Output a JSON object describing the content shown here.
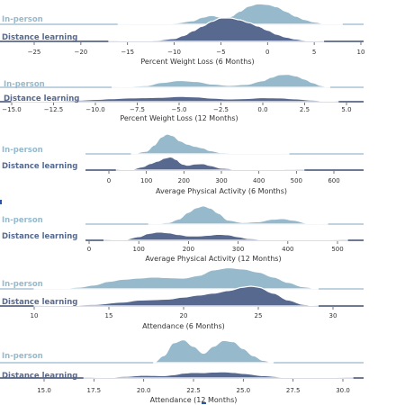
{
  "colors": {
    "inperson": "#97b9cc",
    "distance": "#57698f",
    "baseline_inperson": "#97b9cc",
    "baseline_distance": "#3e4f72",
    "outline": "#ffffff"
  },
  "chart_data": [
    {
      "type": "area",
      "title": "",
      "xlabel": "Percent Weight Loss (6 Months)",
      "ylabel": "",
      "xlim": [
        -28,
        10
      ],
      "xticks": [
        {
          "v": -25,
          "label": "−25"
        },
        {
          "v": -20,
          "label": "−20"
        },
        {
          "v": -15,
          "label": "−15"
        },
        {
          "v": -10,
          "label": "−10"
        },
        {
          "v": -5,
          "label": "−5"
        },
        {
          "v": 0,
          "label": "0"
        },
        {
          "v": 5,
          "label": "5"
        },
        {
          "v": 10,
          "label": "10"
        }
      ],
      "series": [
        {
          "name": "In-person",
          "range": [
            -16,
            8
          ],
          "x": [
            -16,
            -12,
            -10,
            -8,
            -7,
            -6,
            -5,
            -4,
            -3,
            -2,
            -1,
            0,
            1,
            2,
            3,
            4,
            5,
            6,
            8
          ],
          "density": [
            0.01,
            0.03,
            0.05,
            0.15,
            0.3,
            0.38,
            0.3,
            0.32,
            0.55,
            0.78,
            0.88,
            0.85,
            0.75,
            0.55,
            0.35,
            0.2,
            0.1,
            0.04,
            0.01
          ]
        },
        {
          "name": "Distance learning",
          "range": [
            -17,
            6
          ],
          "x": [
            -17,
            -14,
            -12,
            -10,
            -9,
            -8,
            -7,
            -6,
            -5,
            -4,
            -3,
            -2,
            -1,
            0,
            1,
            2,
            3,
            4,
            5,
            6
          ],
          "density": [
            0.01,
            0.02,
            0.05,
            0.12,
            0.25,
            0.45,
            0.65,
            0.85,
            1.0,
            1.0,
            0.92,
            0.8,
            0.65,
            0.48,
            0.3,
            0.18,
            0.1,
            0.05,
            0.02,
            0.01
          ]
        }
      ]
    },
    {
      "type": "area",
      "title": "",
      "xlabel": "Percent Weight Loss (12 Months)",
      "ylabel": "",
      "xlim": [
        -15.8,
        6.4
      ],
      "xticks": [
        {
          "v": -15,
          "label": "−15.0"
        },
        {
          "v": -12.5,
          "label": "−12.5"
        },
        {
          "v": -10,
          "label": "−10.0"
        },
        {
          "v": -7.5,
          "label": "−7.5"
        },
        {
          "v": -5,
          "label": "−5.0"
        },
        {
          "v": -2.5,
          "label": "−2.5"
        },
        {
          "v": 0,
          "label": "0.0"
        },
        {
          "v": 2.5,
          "label": "2.5"
        },
        {
          "v": 5,
          "label": "5.0"
        }
      ],
      "series": [
        {
          "name": "In-person",
          "range": [
            -9,
            4
          ],
          "x": [
            -9,
            -7,
            -6,
            -5,
            -4,
            -3,
            -2,
            -1,
            0,
            0.5,
            1,
            1.5,
            2,
            2.5,
            3,
            3.5,
            4
          ],
          "density": [
            0.01,
            0.1,
            0.3,
            0.42,
            0.36,
            0.2,
            0.12,
            0.18,
            0.4,
            0.62,
            0.78,
            0.8,
            0.7,
            0.5,
            0.28,
            0.1,
            0.01
          ]
        },
        {
          "name": "Distance learning",
          "range": [
            -15,
            4.5
          ],
          "x": [
            -15,
            -13,
            -11,
            -10,
            -9,
            -8,
            -7,
            -6,
            -5,
            -4,
            -3,
            -2,
            -1,
            0,
            1,
            2,
            3,
            4,
            4.5
          ],
          "density": [
            0.02,
            0.06,
            0.12,
            0.18,
            0.24,
            0.3,
            0.32,
            0.35,
            0.42,
            0.38,
            0.28,
            0.22,
            0.25,
            0.32,
            0.3,
            0.22,
            0.12,
            0.04,
            0.01
          ]
        }
      ]
    },
    {
      "type": "area",
      "title": "",
      "xlabel": "Average Physical Activity (6 Months)",
      "ylabel": "",
      "xlim": [
        -60,
        690
      ],
      "xticks": [
        {
          "v": 0,
          "label": "0"
        },
        {
          "v": 100,
          "label": "100"
        },
        {
          "v": 200,
          "label": "200"
        },
        {
          "v": 300,
          "label": "300"
        },
        {
          "v": 400,
          "label": "400"
        },
        {
          "v": 500,
          "label": "500"
        },
        {
          "v": 600,
          "label": "600"
        }
      ],
      "series": [
        {
          "name": "In-person",
          "range": [
            60,
            480
          ],
          "x": [
            60,
            100,
            120,
            140,
            155,
            170,
            190,
            210,
            230,
            250,
            270,
            300,
            350,
            400,
            450,
            480
          ],
          "density": [
            0.01,
            0.12,
            0.4,
            0.78,
            0.92,
            0.85,
            0.6,
            0.45,
            0.35,
            0.28,
            0.15,
            0.06,
            0.04,
            0.03,
            0.02,
            0.01
          ]
        },
        {
          "name": "Distance learning",
          "range": [
            20,
            520
          ],
          "x": [
            20,
            60,
            90,
            110,
            130,
            150,
            165,
            180,
            195,
            210,
            230,
            250,
            270,
            300,
            350,
            400,
            450,
            520
          ],
          "density": [
            0.01,
            0.05,
            0.2,
            0.4,
            0.55,
            0.75,
            0.82,
            0.65,
            0.38,
            0.3,
            0.38,
            0.4,
            0.28,
            0.12,
            0.04,
            0.02,
            0.02,
            0.01
          ]
        }
      ]
    },
    {
      "type": "area",
      "title": "",
      "xlabel": "Average Physical Activity (12 Months)",
      "ylabel": "",
      "xlim": [
        -10,
        580
      ],
      "xticks": [
        {
          "v": 0,
          "label": "0"
        },
        {
          "v": 100,
          "label": "100"
        },
        {
          "v": 200,
          "label": "200"
        },
        {
          "v": 300,
          "label": "300"
        },
        {
          "v": 400,
          "label": "400"
        },
        {
          "v": 500,
          "label": "500"
        }
      ],
      "series": [
        {
          "name": "In-person",
          "range": [
            120,
            480
          ],
          "x": [
            120,
            160,
            180,
            200,
            215,
            230,
            245,
            260,
            280,
            310,
            340,
            370,
            390,
            410,
            440,
            480
          ],
          "density": [
            0.01,
            0.08,
            0.25,
            0.6,
            0.82,
            0.92,
            0.8,
            0.55,
            0.2,
            0.08,
            0.12,
            0.25,
            0.28,
            0.2,
            0.05,
            0.01
          ]
        },
        {
          "name": "Distance learning",
          "range": [
            30,
            520
          ],
          "x": [
            30,
            70,
            100,
            120,
            140,
            160,
            180,
            200,
            220,
            240,
            260,
            280,
            300,
            320,
            360,
            400,
            450,
            520
          ],
          "density": [
            0.01,
            0.05,
            0.25,
            0.48,
            0.58,
            0.52,
            0.4,
            0.3,
            0.3,
            0.35,
            0.42,
            0.38,
            0.25,
            0.12,
            0.05,
            0.03,
            0.04,
            0.01
          ]
        }
      ]
    },
    {
      "type": "area",
      "title": "",
      "xlabel": "Attendance (6 Months)",
      "ylabel": "",
      "xlim": [
        8,
        32
      ],
      "xticks": [
        {
          "v": 10,
          "label": "10"
        },
        {
          "v": 15,
          "label": "15"
        },
        {
          "v": 20,
          "label": "20"
        },
        {
          "v": 25,
          "label": "25"
        },
        {
          "v": 30,
          "label": "30"
        }
      ],
      "series": [
        {
          "name": "In-person",
          "range": [
            10,
            29
          ],
          "x": [
            10,
            12,
            13,
            14,
            15,
            16,
            17,
            18,
            19,
            20,
            21,
            22,
            23,
            24,
            25,
            26,
            27,
            28,
            29
          ],
          "density": [
            0.01,
            0.04,
            0.08,
            0.18,
            0.35,
            0.45,
            0.5,
            0.55,
            0.52,
            0.5,
            0.62,
            0.88,
            0.98,
            0.92,
            0.78,
            0.55,
            0.3,
            0.1,
            0.02
          ]
        },
        {
          "name": "Distance learning",
          "range": [
            10,
            29
          ],
          "x": [
            10,
            12,
            14,
            16,
            17,
            18,
            19,
            20,
            21,
            22,
            23,
            24,
            24.5,
            25,
            26,
            27,
            28,
            29
          ],
          "density": [
            0.01,
            0.03,
            0.08,
            0.2,
            0.3,
            0.32,
            0.35,
            0.45,
            0.55,
            0.65,
            0.78,
            0.95,
            1.0,
            0.95,
            0.65,
            0.3,
            0.08,
            0.01
          ]
        }
      ]
    },
    {
      "type": "area",
      "title": "",
      "xlabel": "Attendance (12 Months)",
      "ylabel": "",
      "xlim": [
        13.2,
        31
      ],
      "xticks": [
        {
          "v": 15,
          "label": "15.0"
        },
        {
          "v": 17.5,
          "label": "17.5"
        },
        {
          "v": 20,
          "label": "20.0"
        },
        {
          "v": 22.5,
          "label": "22.5"
        },
        {
          "v": 25,
          "label": "25.0"
        },
        {
          "v": 27.5,
          "label": "27.5"
        },
        {
          "v": 30,
          "label": "30.0"
        }
      ],
      "series": [
        {
          "name": "In-person",
          "range": [
            20.5,
            26.5
          ],
          "x": [
            20.5,
            21,
            21.5,
            22,
            22.5,
            23,
            23.5,
            24,
            24.5,
            25,
            25.5,
            26,
            26.5
          ],
          "density": [
            0.01,
            0.3,
            0.85,
            0.98,
            0.7,
            0.4,
            0.7,
            0.95,
            0.9,
            0.6,
            0.3,
            0.1,
            0.01
          ]
        },
        {
          "name": "Distance learning",
          "range": [
            17,
            30.5
          ],
          "x": [
            17,
            18,
            19,
            20,
            21,
            21.5,
            22,
            22.5,
            23,
            23.5,
            24,
            24.5,
            25,
            26,
            27,
            28,
            29,
            30.5
          ],
          "density": [
            0.01,
            0.04,
            0.15,
            0.25,
            0.22,
            0.3,
            0.45,
            0.52,
            0.5,
            0.55,
            0.58,
            0.52,
            0.42,
            0.22,
            0.1,
            0.04,
            0.05,
            0.01
          ]
        }
      ]
    }
  ]
}
